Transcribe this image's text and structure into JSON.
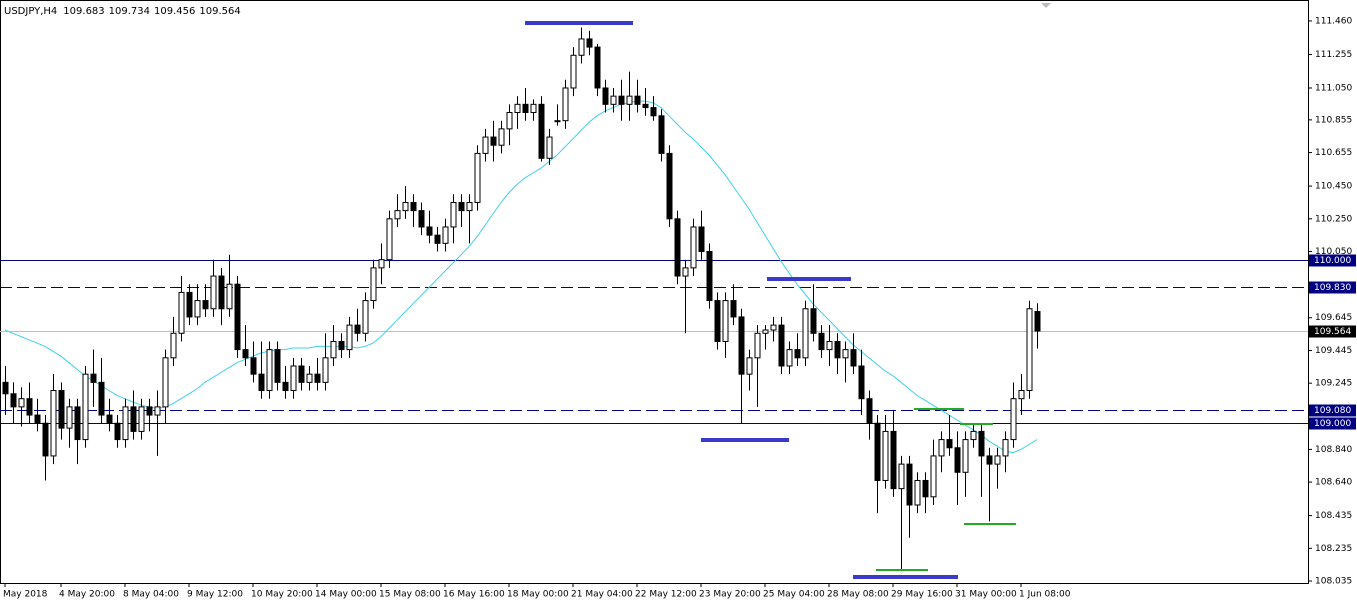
{
  "chart_data": {
    "type": "candlestick",
    "symbol": "USDJPY,H4",
    "ylim": [
      108.023,
      111.588
    ],
    "yticks": [
      {
        "value": 111.46,
        "label": "111.460"
      },
      111.255,
      {
        "value": 111.05,
        "label": "111.050"
      },
      110.855,
      110.655,
      {
        "value": 110.45,
        "label": "110.450"
      },
      {
        "value": 110.25,
        "label": "110.250"
      },
      {
        "value": 110.05,
        "label": "110.050"
      },
      109.645,
      109.445,
      109.245,
      {
        "value": 108.84,
        "label": "108.840"
      },
      {
        "value": 108.64,
        "label": "108.640"
      },
      108.435,
      108.235,
      108.035
    ],
    "hlines": [
      {
        "value": 110.0,
        "label": "110.000",
        "style": "solid",
        "color": "#000080"
      },
      {
        "value": 109.83,
        "label": "109.830",
        "style": "dashed",
        "color": "#000080"
      },
      {
        "value": 109.08,
        "label": "109.080",
        "style": "dashed",
        "color": "#000080"
      },
      {
        "value": 109.0,
        "label": "109.000",
        "style": "solid",
        "color": "#000080"
      }
    ],
    "current_price": 109.564,
    "ma_color": "#40d0e8",
    "categories": [
      "May 2018",
      null,
      null,
      null,
      null,
      null,
      null,
      "4 May 20:00",
      null,
      null,
      null,
      null,
      null,
      null,
      null,
      "8 May 04:00",
      null,
      null,
      null,
      null,
      null,
      null,
      null,
      "9 May 12:00",
      null,
      null,
      null,
      null,
      null,
      null,
      null,
      "10 May 20:00",
      null,
      null,
      null,
      null,
      null,
      null,
      null,
      "14 May 00:00",
      null,
      null,
      null,
      null,
      null,
      null,
      null,
      "15 May 08:00",
      null,
      null,
      null,
      null,
      null,
      null,
      null,
      "16 May 16:00",
      null,
      null,
      null,
      null,
      null,
      null,
      null,
      "18 May 00:00",
      null,
      null,
      null,
      null,
      null,
      null,
      null,
      "21 May 04:00",
      null,
      null,
      null,
      null,
      null,
      null,
      null,
      "22 May 12:00",
      null,
      null,
      null,
      null,
      null,
      null,
      null,
      "23 May 20:00",
      null,
      null,
      null,
      null,
      null,
      null,
      null,
      "25 May 04:00",
      null,
      null,
      null,
      null,
      null,
      null,
      null,
      "28 May 08:00",
      null,
      null,
      null,
      null,
      null,
      null,
      null,
      "29 May 16:00",
      null,
      null,
      null,
      null,
      null,
      null,
      null,
      "31 May 00:00",
      null,
      null,
      null,
      null,
      null,
      null,
      null,
      "1 Jun 08:00",
      null,
      null
    ],
    "ohlc": [
      [
        109.25,
        109.35,
        109.05,
        109.18
      ],
      [
        109.18,
        109.25,
        109.0,
        109.1
      ],
      [
        109.1,
        109.22,
        108.98,
        109.15
      ],
      [
        109.15,
        109.25,
        109.0,
        109.05
      ],
      [
        109.05,
        109.15,
        108.95,
        109.0
      ],
      [
        109.0,
        109.05,
        108.65,
        108.8
      ],
      [
        108.8,
        109.3,
        108.75,
        109.2
      ],
      [
        109.2,
        109.25,
        108.9,
        108.97
      ],
      [
        108.97,
        109.15,
        108.85,
        109.1
      ],
      [
        109.1,
        109.15,
        108.75,
        108.9
      ],
      [
        108.9,
        109.35,
        108.85,
        109.3
      ],
      [
        109.3,
        109.45,
        109.1,
        109.25
      ],
      [
        109.25,
        109.4,
        109.0,
        109.05
      ],
      [
        109.05,
        109.15,
        108.95,
        109.0
      ],
      [
        109.0,
        109.05,
        108.85,
        108.9
      ],
      [
        108.9,
        109.15,
        108.85,
        109.1
      ],
      [
        109.1,
        109.2,
        108.9,
        108.95
      ],
      [
        108.95,
        109.15,
        108.9,
        109.1
      ],
      [
        109.1,
        109.15,
        108.95,
        109.05
      ],
      [
        109.05,
        109.2,
        108.8,
        109.1
      ],
      [
        109.1,
        109.45,
        109.0,
        109.4
      ],
      [
        109.4,
        109.65,
        109.35,
        109.55
      ],
      [
        109.55,
        109.9,
        109.5,
        109.8
      ],
      [
        109.8,
        109.85,
        109.6,
        109.65
      ],
      [
        109.65,
        109.85,
        109.6,
        109.75
      ],
      [
        109.75,
        109.85,
        109.65,
        109.7
      ],
      [
        109.7,
        110.0,
        109.65,
        109.9
      ],
      [
        109.9,
        109.95,
        109.6,
        109.7
      ],
      [
        109.7,
        110.03,
        109.65,
        109.85
      ],
      [
        109.85,
        109.9,
        109.4,
        109.45
      ],
      [
        109.45,
        109.6,
        109.35,
        109.4
      ],
      [
        109.4,
        109.5,
        109.25,
        109.3
      ],
      [
        109.3,
        109.5,
        109.15,
        109.2
      ],
      [
        109.2,
        109.5,
        109.15,
        109.45
      ],
      [
        109.45,
        109.5,
        109.2,
        109.25
      ],
      [
        109.25,
        109.35,
        109.15,
        109.2
      ],
      [
        109.2,
        109.4,
        109.15,
        109.35
      ],
      [
        109.35,
        109.4,
        109.2,
        109.25
      ],
      [
        109.25,
        109.35,
        109.2,
        109.3
      ],
      [
        109.3,
        109.4,
        109.2,
        109.25
      ],
      [
        109.25,
        109.55,
        109.2,
        109.4
      ],
      [
        109.4,
        109.6,
        109.35,
        109.5
      ],
      [
        109.5,
        109.55,
        109.4,
        109.45
      ],
      [
        109.45,
        109.65,
        109.4,
        109.6
      ],
      [
        109.6,
        109.7,
        109.5,
        109.55
      ],
      [
        109.55,
        109.8,
        109.5,
        109.75
      ],
      [
        109.75,
        110.0,
        109.7,
        109.95
      ],
      [
        109.95,
        110.1,
        109.85,
        110.0
      ],
      [
        110.0,
        110.3,
        109.95,
        110.25
      ],
      [
        110.25,
        110.4,
        110.2,
        110.3
      ],
      [
        110.3,
        110.45,
        110.25,
        110.35
      ],
      [
        110.35,
        110.4,
        110.2,
        110.3
      ],
      [
        110.3,
        110.35,
        110.15,
        110.2
      ],
      [
        110.2,
        110.3,
        110.1,
        110.15
      ],
      [
        110.15,
        110.2,
        110.05,
        110.1
      ],
      [
        110.1,
        110.25,
        110.05,
        110.2
      ],
      [
        110.2,
        110.4,
        110.1,
        110.35
      ],
      [
        110.35,
        110.4,
        110.2,
        110.3
      ],
      [
        110.3,
        110.4,
        110.1,
        110.35
      ],
      [
        110.35,
        110.7,
        110.3,
        110.65
      ],
      [
        110.65,
        110.8,
        110.6,
        110.75
      ],
      [
        110.75,
        110.85,
        110.6,
        110.7
      ],
      [
        110.7,
        110.85,
        110.65,
        110.8
      ],
      [
        110.8,
        110.95,
        110.7,
        110.9
      ],
      [
        110.9,
        111.0,
        110.8,
        110.95
      ],
      [
        110.95,
        111.05,
        110.85,
        110.9
      ],
      [
        110.9,
        110.98,
        110.85,
        110.95
      ],
      [
        110.95,
        111.0,
        110.6,
        110.62
      ],
      [
        110.62,
        110.8,
        110.58,
        110.75
      ],
      [
        110.85,
        110.95,
        110.82,
        110.85
      ],
      [
        110.85,
        111.1,
        110.8,
        111.05
      ],
      [
        111.05,
        111.3,
        111.0,
        111.25
      ],
      [
        111.25,
        111.42,
        111.2,
        111.35
      ],
      [
        111.35,
        111.4,
        111.25,
        111.3
      ],
      [
        111.3,
        111.32,
        111.0,
        111.05
      ],
      [
        111.05,
        111.1,
        110.9,
        110.95
      ],
      [
        110.95,
        111.05,
        110.9,
        111.0
      ],
      [
        111.0,
        111.1,
        110.85,
        110.95
      ],
      [
        110.95,
        111.15,
        110.85,
        111.0
      ],
      [
        111.0,
        111.1,
        110.9,
        110.95
      ],
      [
        110.95,
        111.05,
        110.88,
        110.93
      ],
      [
        110.93,
        111.0,
        110.85,
        110.88
      ],
      [
        110.88,
        110.92,
        110.6,
        110.65
      ],
      [
        110.65,
        110.7,
        110.2,
        110.25
      ],
      [
        110.25,
        110.3,
        109.85,
        109.9
      ],
      [
        109.9,
        110.0,
        109.55,
        109.95
      ],
      [
        109.95,
        110.25,
        109.9,
        110.2
      ],
      [
        110.2,
        110.3,
        110.0,
        110.05
      ],
      [
        110.05,
        110.1,
        109.7,
        109.75
      ],
      [
        109.75,
        109.8,
        109.45,
        109.5
      ],
      [
        109.5,
        109.8,
        109.4,
        109.75
      ],
      [
        109.75,
        109.85,
        109.6,
        109.65
      ],
      [
        109.65,
        109.7,
        109.0,
        109.3
      ],
      [
        109.3,
        109.45,
        109.2,
        109.4
      ],
      [
        109.4,
        109.6,
        109.1,
        109.55
      ],
      [
        109.55,
        109.6,
        109.45,
        109.57
      ],
      [
        109.57,
        109.65,
        109.5,
        109.6
      ],
      [
        109.6,
        109.65,
        109.3,
        109.35
      ],
      [
        109.35,
        109.5,
        109.3,
        109.45
      ],
      [
        109.45,
        109.55,
        109.35,
        109.4
      ],
      [
        109.4,
        109.75,
        109.35,
        109.7
      ],
      [
        109.7,
        109.85,
        109.5,
        109.55
      ],
      [
        109.55,
        109.6,
        109.4,
        109.45
      ],
      [
        109.45,
        109.6,
        109.35,
        109.5
      ],
      [
        109.5,
        109.55,
        109.3,
        109.4
      ],
      [
        109.4,
        109.5,
        109.25,
        109.45
      ],
      [
        109.45,
        109.55,
        109.3,
        109.35
      ],
      [
        109.35,
        109.45,
        109.05,
        109.15
      ],
      [
        109.15,
        109.2,
        108.9,
        109.0
      ],
      [
        109.0,
        109.05,
        108.45,
        108.65
      ],
      [
        108.65,
        109.05,
        108.6,
        108.95
      ],
      [
        108.95,
        109.08,
        108.55,
        108.6
      ],
      [
        108.6,
        108.8,
        108.1,
        108.75
      ],
      [
        108.75,
        108.8,
        108.3,
        108.5
      ],
      [
        108.5,
        108.7,
        108.45,
        108.65
      ],
      [
        108.65,
        108.7,
        108.45,
        108.55
      ],
      [
        108.55,
        108.9,
        108.5,
        108.8
      ],
      [
        108.8,
        108.95,
        108.7,
        108.9
      ],
      [
        108.9,
        109.05,
        108.8,
        108.85
      ],
      [
        108.85,
        108.95,
        108.5,
        108.7
      ],
      [
        108.7,
        108.95,
        108.55,
        108.9
      ],
      [
        108.9,
        109.0,
        108.85,
        108.95
      ],
      [
        108.95,
        109.0,
        108.55,
        108.8
      ],
      [
        108.8,
        108.85,
        108.4,
        108.75
      ],
      [
        108.75,
        108.85,
        108.6,
        108.8
      ],
      [
        108.8,
        108.95,
        108.7,
        108.9
      ],
      [
        108.9,
        109.25,
        108.85,
        109.15
      ],
      [
        109.15,
        109.3,
        109.05,
        109.2
      ],
      [
        109.2,
        109.75,
        109.15,
        109.7
      ],
      [
        109.683,
        109.734,
        109.456,
        109.564
      ]
    ],
    "ma": [
      109.57,
      109.55,
      109.53,
      109.51,
      109.49,
      109.47,
      109.44,
      109.41,
      109.37,
      109.33,
      109.29,
      109.26,
      109.23,
      109.2,
      109.17,
      109.15,
      109.13,
      109.11,
      109.1,
      109.09,
      109.1,
      109.12,
      109.15,
      109.18,
      109.21,
      109.25,
      109.28,
      109.31,
      109.34,
      109.37,
      109.39,
      109.41,
      109.43,
      109.44,
      109.45,
      109.45,
      109.46,
      109.46,
      109.46,
      109.47,
      109.47,
      109.47,
      109.47,
      109.47,
      109.46,
      109.47,
      109.49,
      109.53,
      109.58,
      109.63,
      109.68,
      109.73,
      109.78,
      109.83,
      109.88,
      109.93,
      109.98,
      110.03,
      110.08,
      110.14,
      110.21,
      110.28,
      110.35,
      110.41,
      110.46,
      110.5,
      110.53,
      110.56,
      110.6,
      110.64,
      110.69,
      110.74,
      110.79,
      110.84,
      110.88,
      110.91,
      110.93,
      110.95,
      110.96,
      110.97,
      110.97,
      110.96,
      110.93,
      110.88,
      110.83,
      110.78,
      110.74,
      110.69,
      110.64,
      110.58,
      110.52,
      110.45,
      110.38,
      110.31,
      110.23,
      110.15,
      110.07,
      109.99,
      109.92,
      109.85,
      109.79,
      109.73,
      109.68,
      109.63,
      109.58,
      109.53,
      109.48,
      109.44,
      109.4,
      109.36,
      109.32,
      109.29,
      109.25,
      109.21,
      109.17,
      109.14,
      109.11,
      109.08,
      109.05,
      109.02,
      108.99,
      108.96,
      108.93,
      108.89,
      108.86,
      108.83,
      108.82,
      108.84,
      108.87,
      108.9
    ]
  }
}
